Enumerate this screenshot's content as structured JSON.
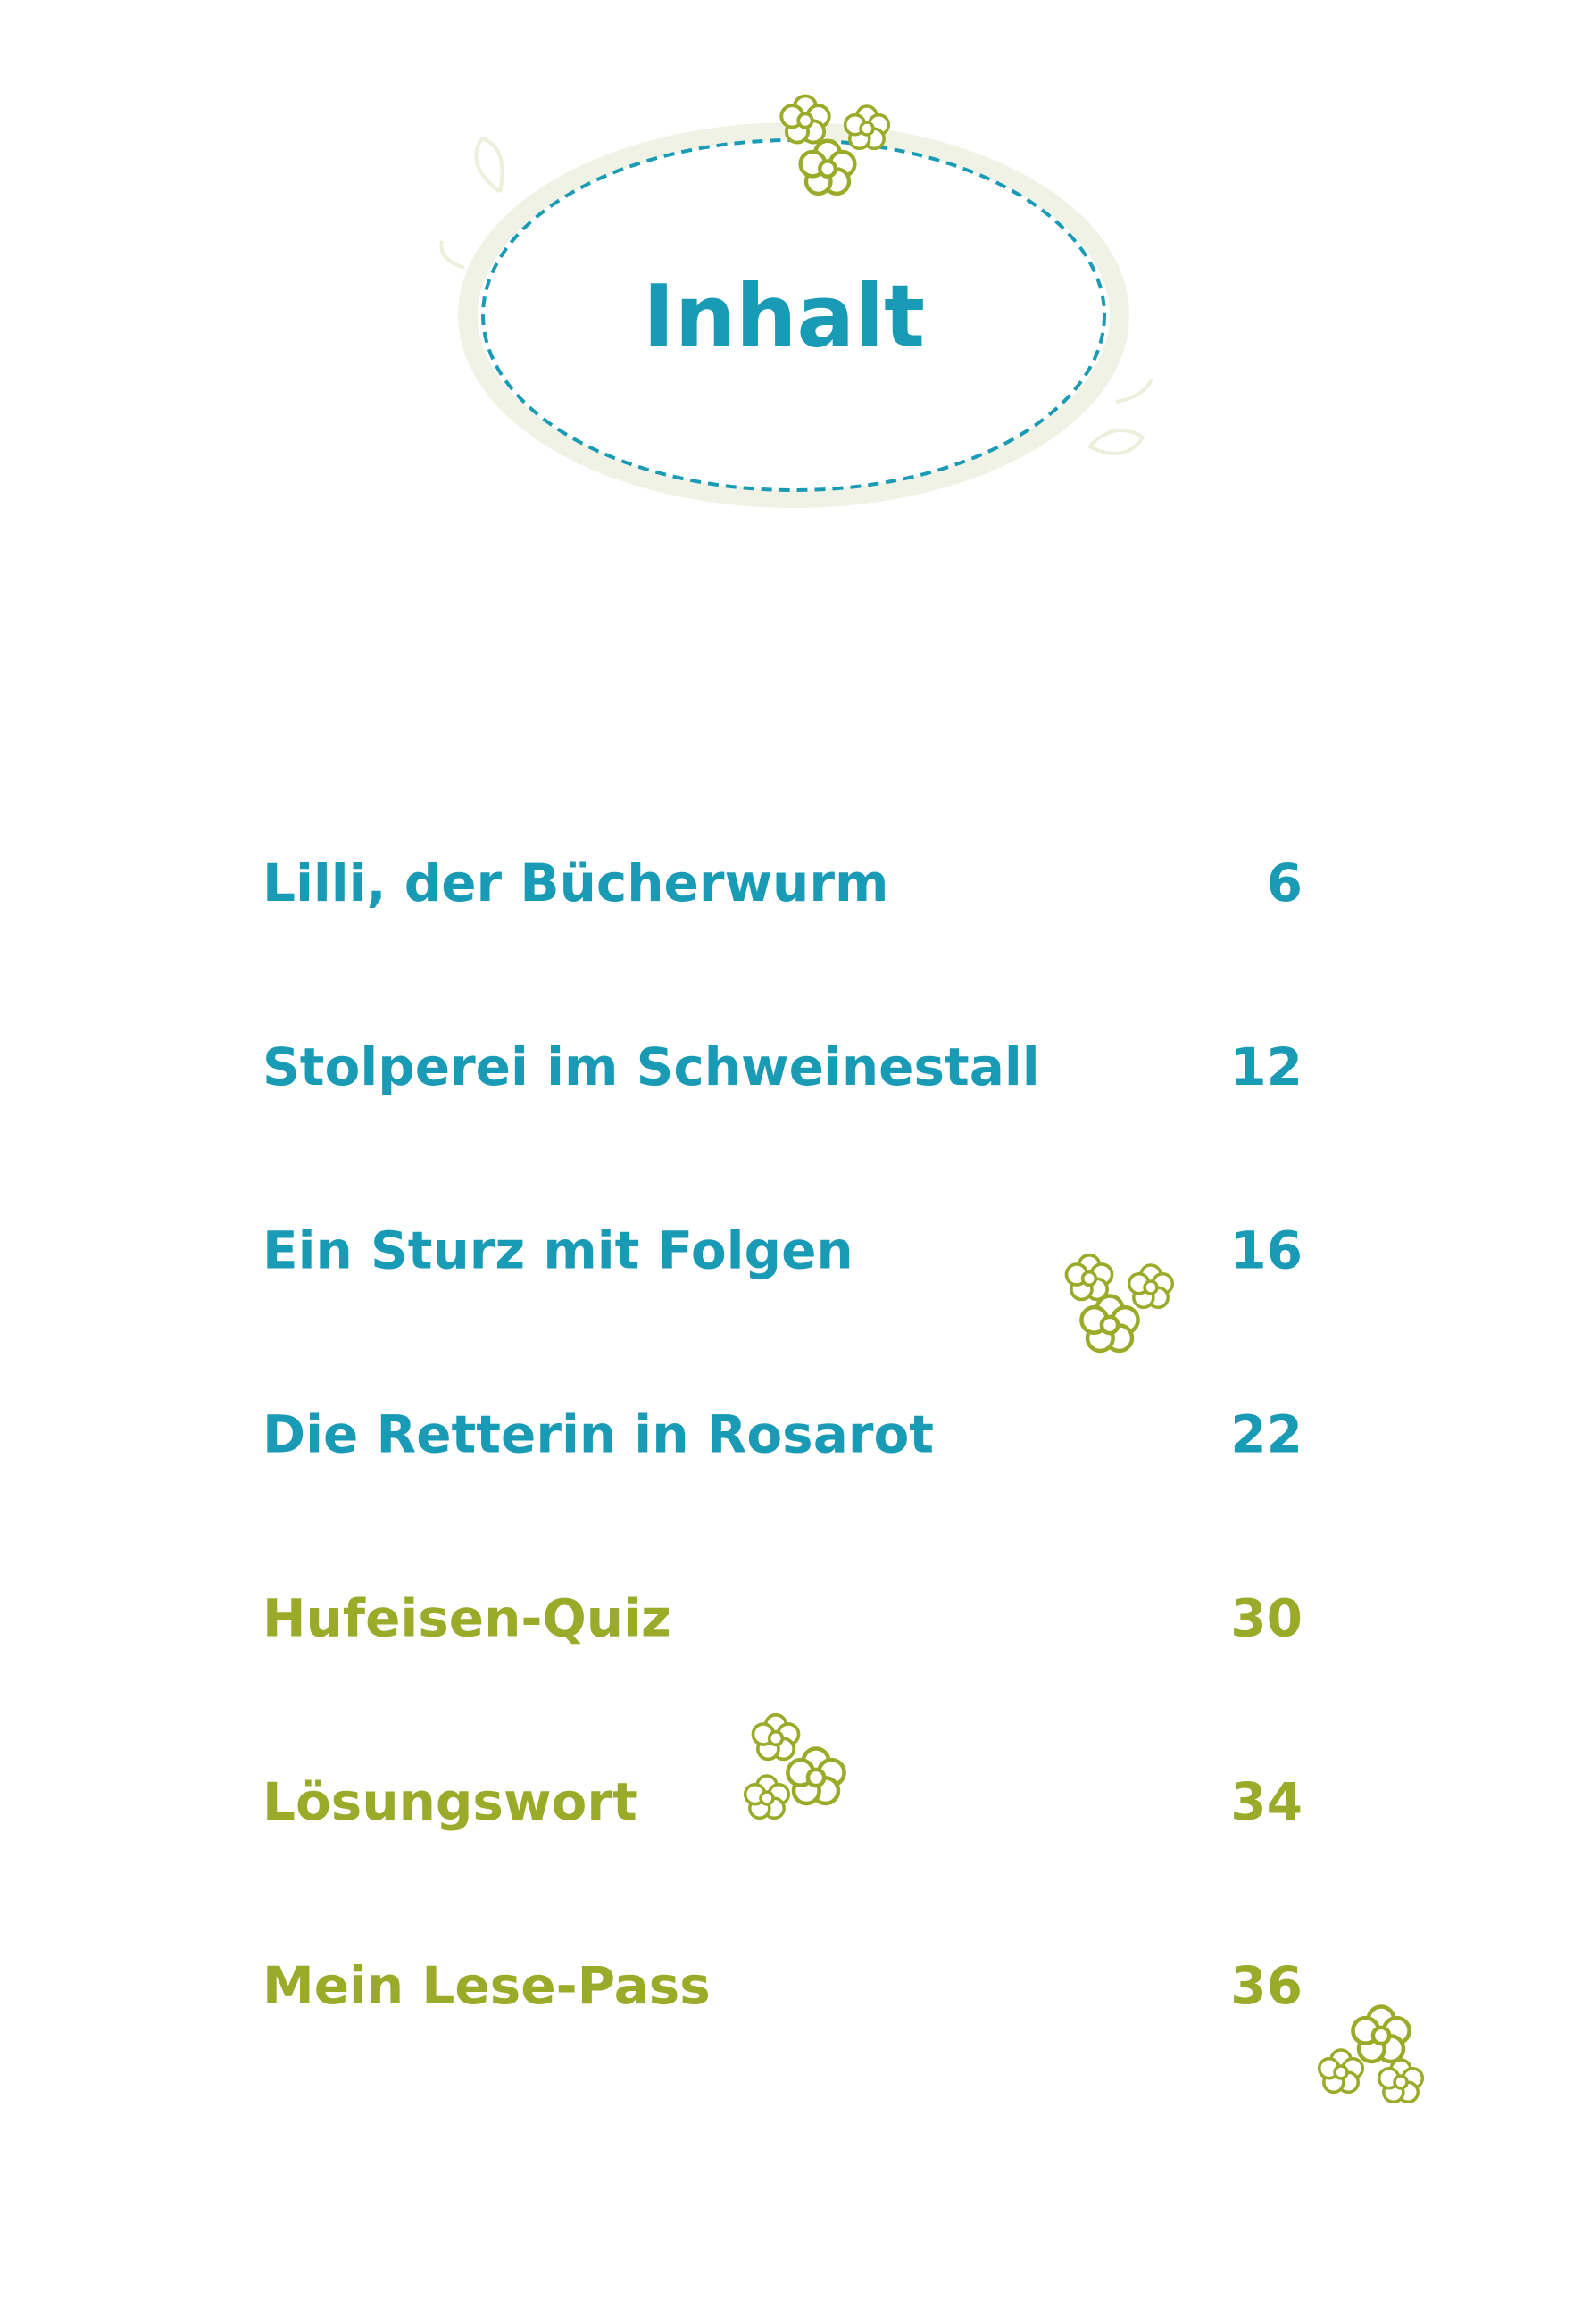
{
  "header": {
    "title": "Inhalt"
  },
  "entries": [
    {
      "title": "Lilli, der Bücherwurm",
      "page": 6
    },
    {
      "title": "Stolperei im Schweinestall",
      "page": 12
    },
    {
      "title": "Ein Sturz mit Folgen",
      "page": 16
    },
    {
      "title": "Die Retterin in Rosarot",
      "page": 22
    },
    {
      "title": "Hufeisen-Quiz",
      "page": 30
    },
    {
      "title": "Lösungswort",
      "page": 34
    },
    {
      "title": "Mein Lese-Pass",
      "page": 36
    }
  ]
}
